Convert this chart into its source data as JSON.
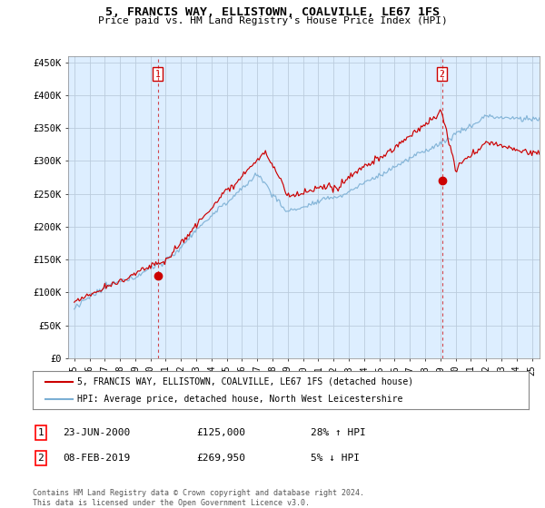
{
  "title": "5, FRANCIS WAY, ELLISTOWN, COALVILLE, LE67 1FS",
  "subtitle": "Price paid vs. HM Land Registry's House Price Index (HPI)",
  "ylabel_ticks": [
    "£0",
    "£50K",
    "£100K",
    "£150K",
    "£200K",
    "£250K",
    "£300K",
    "£350K",
    "£400K",
    "£450K"
  ],
  "ytick_values": [
    0,
    50000,
    100000,
    150000,
    200000,
    250000,
    300000,
    350000,
    400000,
    450000
  ],
  "ylim": [
    0,
    460000
  ],
  "xlim_start": 1994.6,
  "xlim_end": 2025.5,
  "hpi_color": "#7bafd4",
  "price_color": "#cc0000",
  "plot_bg_color": "#ddeeff",
  "marker1_date": 2000.47,
  "marker2_date": 2019.1,
  "marker1_price": 125000,
  "marker2_price": 269950,
  "legend1": "5, FRANCIS WAY, ELLISTOWN, COALVILLE, LE67 1FS (detached house)",
  "legend2": "HPI: Average price, detached house, North West Leicestershire",
  "annotation1_label": "1",
  "annotation1_date": "23-JUN-2000",
  "annotation1_price": "£125,000",
  "annotation1_hpi": "28% ↑ HPI",
  "annotation2_label": "2",
  "annotation2_date": "08-FEB-2019",
  "annotation2_price": "£269,950",
  "annotation2_hpi": "5% ↓ HPI",
  "footer": "Contains HM Land Registry data © Crown copyright and database right 2024.\nThis data is licensed under the Open Government Licence v3.0.",
  "background_color": "#ffffff",
  "grid_color": "#bbccdd"
}
